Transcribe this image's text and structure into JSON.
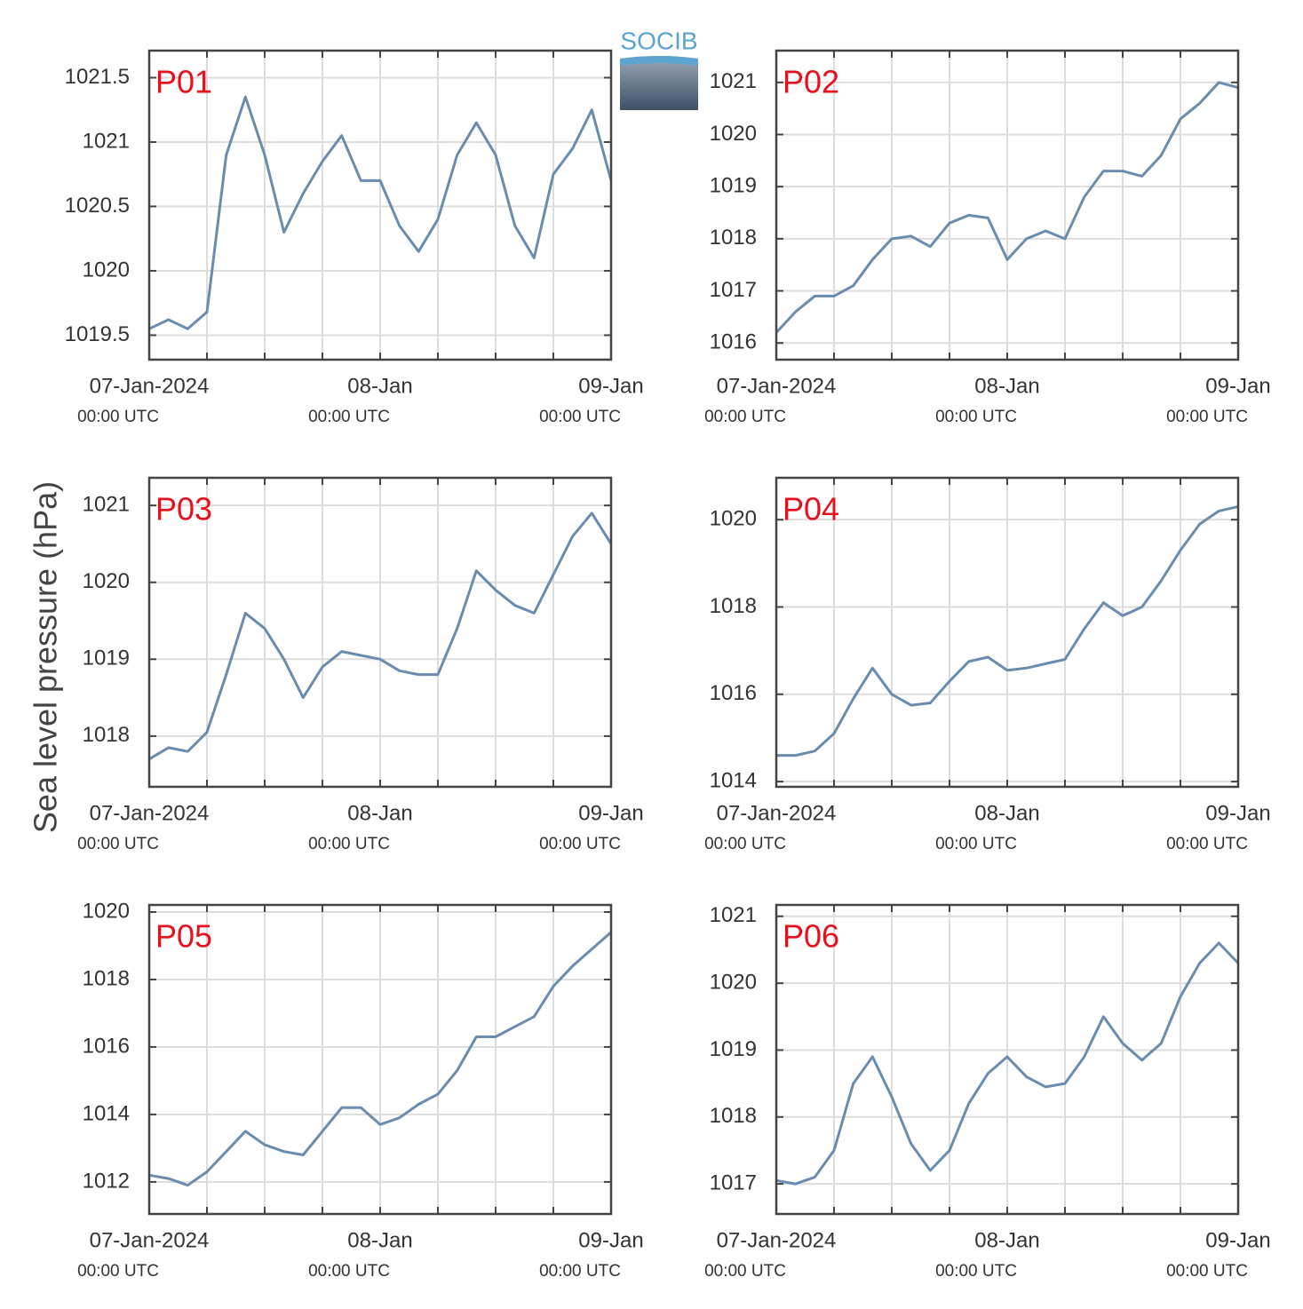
{
  "ylabel": "Sea level pressure (hPa)",
  "logo": "SOCIB",
  "chart_data": [
    {
      "type": "line",
      "title": "P01",
      "color": "#6a8caf",
      "grid": true,
      "x": [
        0,
        2,
        4,
        6,
        8,
        10,
        12,
        14,
        16,
        18,
        20,
        22,
        24,
        26,
        28,
        30,
        32,
        34,
        36,
        38,
        40,
        42,
        44,
        46,
        48
      ],
      "values": [
        1019.55,
        1019.62,
        1019.55,
        1019.68,
        1020.9,
        1021.35,
        1020.9,
        1020.3,
        1020.6,
        1020.85,
        1021.05,
        1020.7,
        1020.7,
        1020.35,
        1020.15,
        1020.4,
        1020.9,
        1021.15,
        1020.9,
        1020.35,
        1020.1,
        1020.75,
        1020.95,
        1021.25,
        1020.7
      ],
      "xlim": [
        0,
        48
      ],
      "xgrid": [
        6,
        12,
        18,
        24,
        30,
        36,
        42
      ],
      "xticks": [
        {
          "value": 0,
          "label": "07-Jan-2024",
          "sublabel": "00:00 UTC"
        },
        {
          "value": 24,
          "label": "08-Jan",
          "sublabel": "00:00 UTC"
        },
        {
          "value": 48,
          "label": "09-Jan",
          "sublabel": "00:00 UTC"
        }
      ],
      "ylim": [
        1019.31,
        1021.71
      ],
      "yticks": [
        1019.5,
        1020,
        1020.5,
        1021,
        1021.5
      ]
    },
    {
      "type": "line",
      "title": "P02",
      "color": "#6a8caf",
      "grid": true,
      "x": [
        0,
        2,
        4,
        6,
        8,
        10,
        12,
        14,
        16,
        18,
        20,
        22,
        24,
        26,
        28,
        30,
        32,
        34,
        36,
        38,
        40,
        42,
        44,
        46,
        48
      ],
      "values": [
        1016.2,
        1016.6,
        1016.9,
        1016.9,
        1017.1,
        1017.6,
        1018.0,
        1018.05,
        1017.85,
        1018.3,
        1018.45,
        1018.4,
        1017.6,
        1018.0,
        1018.15,
        1018.0,
        1018.8,
        1019.3,
        1019.3,
        1019.2,
        1019.6,
        1020.3,
        1020.6,
        1021.0,
        1020.9
      ],
      "xlim": [
        0,
        48
      ],
      "xgrid": [
        6,
        12,
        18,
        24,
        30,
        36,
        42
      ],
      "xticks": [
        {
          "value": 0,
          "label": "07-Jan-2024",
          "sublabel": "00:00 UTC"
        },
        {
          "value": 24,
          "label": "08-Jan",
          "sublabel": "00:00 UTC"
        },
        {
          "value": 48,
          "label": "09-Jan",
          "sublabel": "00:00 UTC"
        }
      ],
      "ylim": [
        1015.68,
        1021.61
      ],
      "yticks": [
        1016,
        1017,
        1018,
        1019,
        1020,
        1021
      ]
    },
    {
      "type": "line",
      "title": "P03",
      "color": "#6a8caf",
      "grid": true,
      "x": [
        0,
        2,
        4,
        6,
        8,
        10,
        12,
        14,
        16,
        18,
        20,
        22,
        24,
        26,
        28,
        30,
        32,
        34,
        36,
        38,
        40,
        42,
        44,
        46,
        48
      ],
      "values": [
        1017.7,
        1017.85,
        1017.8,
        1018.05,
        1018.8,
        1019.6,
        1019.4,
        1019.0,
        1018.5,
        1018.9,
        1019.1,
        1019.05,
        1019.0,
        1018.85,
        1018.8,
        1018.8,
        1019.4,
        1020.15,
        1019.9,
        1019.7,
        1019.6,
        1020.1,
        1020.6,
        1020.9,
        1020.5
      ],
      "xlim": [
        0,
        48
      ],
      "xgrid": [
        6,
        12,
        18,
        24,
        30,
        36,
        42
      ],
      "xticks": [
        {
          "value": 0,
          "label": "07-Jan-2024",
          "sublabel": "00:00 UTC"
        },
        {
          "value": 24,
          "label": "08-Jan",
          "sublabel": "00:00 UTC"
        },
        {
          "value": 48,
          "label": "09-Jan",
          "sublabel": "00:00 UTC"
        }
      ],
      "ylim": [
        1017.34,
        1021.36
      ],
      "yticks": [
        1018,
        1019,
        1020,
        1021
      ]
    },
    {
      "type": "line",
      "title": "P04",
      "color": "#6a8caf",
      "grid": true,
      "x": [
        0,
        2,
        4,
        6,
        8,
        10,
        12,
        14,
        16,
        18,
        20,
        22,
        24,
        26,
        28,
        30,
        32,
        34,
        36,
        38,
        40,
        42,
        44,
        46,
        48
      ],
      "values": [
        1014.6,
        1014.6,
        1014.7,
        1015.1,
        1015.9,
        1016.6,
        1016.0,
        1015.75,
        1015.8,
        1016.3,
        1016.75,
        1016.85,
        1016.55,
        1016.6,
        1016.7,
        1016.8,
        1017.5,
        1018.1,
        1017.8,
        1018.0,
        1018.6,
        1019.3,
        1019.9,
        1020.2,
        1020.3
      ],
      "xlim": [
        0,
        48
      ],
      "xgrid": [
        6,
        12,
        18,
        24,
        30,
        36,
        42
      ],
      "xticks": [
        {
          "value": 0,
          "label": "07-Jan-2024",
          "sublabel": "00:00 UTC"
        },
        {
          "value": 24,
          "label": "08-Jan",
          "sublabel": "00:00 UTC"
        },
        {
          "value": 48,
          "label": "09-Jan",
          "sublabel": "00:00 UTC"
        }
      ],
      "ylim": [
        1013.88,
        1020.96
      ],
      "yticks": [
        1014,
        1016,
        1018,
        1020
      ]
    },
    {
      "type": "line",
      "title": "P05",
      "color": "#6a8caf",
      "grid": true,
      "x": [
        0,
        2,
        4,
        6,
        8,
        10,
        12,
        14,
        16,
        18,
        20,
        22,
        24,
        26,
        28,
        30,
        32,
        34,
        36,
        38,
        40,
        42,
        44,
        46,
        48
      ],
      "values": [
        1012.2,
        1012.1,
        1011.9,
        1012.3,
        1012.9,
        1013.5,
        1013.1,
        1012.9,
        1012.8,
        1013.5,
        1014.2,
        1014.2,
        1013.7,
        1013.9,
        1014.3,
        1014.6,
        1015.3,
        1016.3,
        1016.3,
        1016.6,
        1016.9,
        1017.8,
        1018.4,
        1018.9,
        1019.4
      ],
      "xlim": [
        0,
        48
      ],
      "xgrid": [
        6,
        12,
        18,
        24,
        30,
        36,
        42
      ],
      "xticks": [
        {
          "value": 0,
          "label": "07-Jan-2024",
          "sublabel": "00:00 UTC"
        },
        {
          "value": 24,
          "label": "08-Jan",
          "sublabel": "00:00 UTC"
        },
        {
          "value": 48,
          "label": "09-Jan",
          "sublabel": "00:00 UTC"
        }
      ],
      "ylim": [
        1011.05,
        1020.21
      ],
      "yticks": [
        1012,
        1014,
        1016,
        1018,
        1020
      ]
    },
    {
      "type": "line",
      "title": "P06",
      "color": "#6a8caf",
      "grid": true,
      "x": [
        0,
        2,
        4,
        6,
        8,
        10,
        12,
        14,
        16,
        18,
        20,
        22,
        24,
        26,
        28,
        30,
        32,
        34,
        36,
        38,
        40,
        42,
        44,
        46,
        48
      ],
      "values": [
        1017.05,
        1017.0,
        1017.1,
        1017.5,
        1018.5,
        1018.9,
        1018.3,
        1017.6,
        1017.2,
        1017.5,
        1018.2,
        1018.65,
        1018.9,
        1018.6,
        1018.45,
        1018.5,
        1018.9,
        1019.5,
        1019.1,
        1018.85,
        1019.1,
        1019.8,
        1020.3,
        1020.6,
        1020.3
      ],
      "xlim": [
        0,
        48
      ],
      "xgrid": [
        6,
        12,
        18,
        24,
        30,
        36,
        42
      ],
      "xticks": [
        {
          "value": 0,
          "label": "07-Jan-2024",
          "sublabel": "00:00 UTC"
        },
        {
          "value": 24,
          "label": "08-Jan",
          "sublabel": "00:00 UTC"
        },
        {
          "value": 48,
          "label": "09-Jan",
          "sublabel": "00:00 UTC"
        }
      ],
      "ylim": [
        1016.55,
        1021.17
      ],
      "yticks": [
        1017,
        1018,
        1019,
        1020,
        1021
      ]
    }
  ]
}
